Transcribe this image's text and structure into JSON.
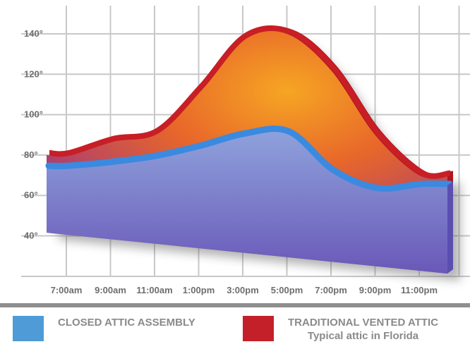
{
  "chart_data": {
    "type": "area",
    "title": "",
    "xlabel": "",
    "ylabel": "",
    "x": [
      "7:00am",
      "9:00am",
      "11:00am",
      "1:00pm",
      "3:00pm",
      "5:00pm",
      "7:00pm",
      "9:00pm",
      "11:00pm"
    ],
    "y_ticks": [
      "140°",
      "120°",
      "100°",
      "80°",
      "60°",
      "40°"
    ],
    "ylim": [
      40,
      140
    ],
    "grid": true,
    "series": [
      {
        "name": "TRADITIONAL VENTED ATTIC",
        "sublabel": "Typical attic in Florida",
        "color": "#c0272d",
        "values": [
          80,
          87,
          91,
          113,
          138,
          140,
          122,
          90,
          70
        ]
      },
      {
        "name": "CLOSED ATTIC ASSEMBLY",
        "color": "#5b9bd5",
        "values": [
          74,
          76,
          79,
          84,
          90,
          91,
          72,
          63,
          65
        ]
      }
    ]
  },
  "legend": {
    "closed_label": "CLOSED ATTIC ASSEMBLY",
    "vented_label": "TRADITIONAL VENTED ATTIC",
    "vented_sublabel": "Typical attic in Florida",
    "closed_color": "#4e9bd7",
    "vented_color": "#c4202a"
  }
}
